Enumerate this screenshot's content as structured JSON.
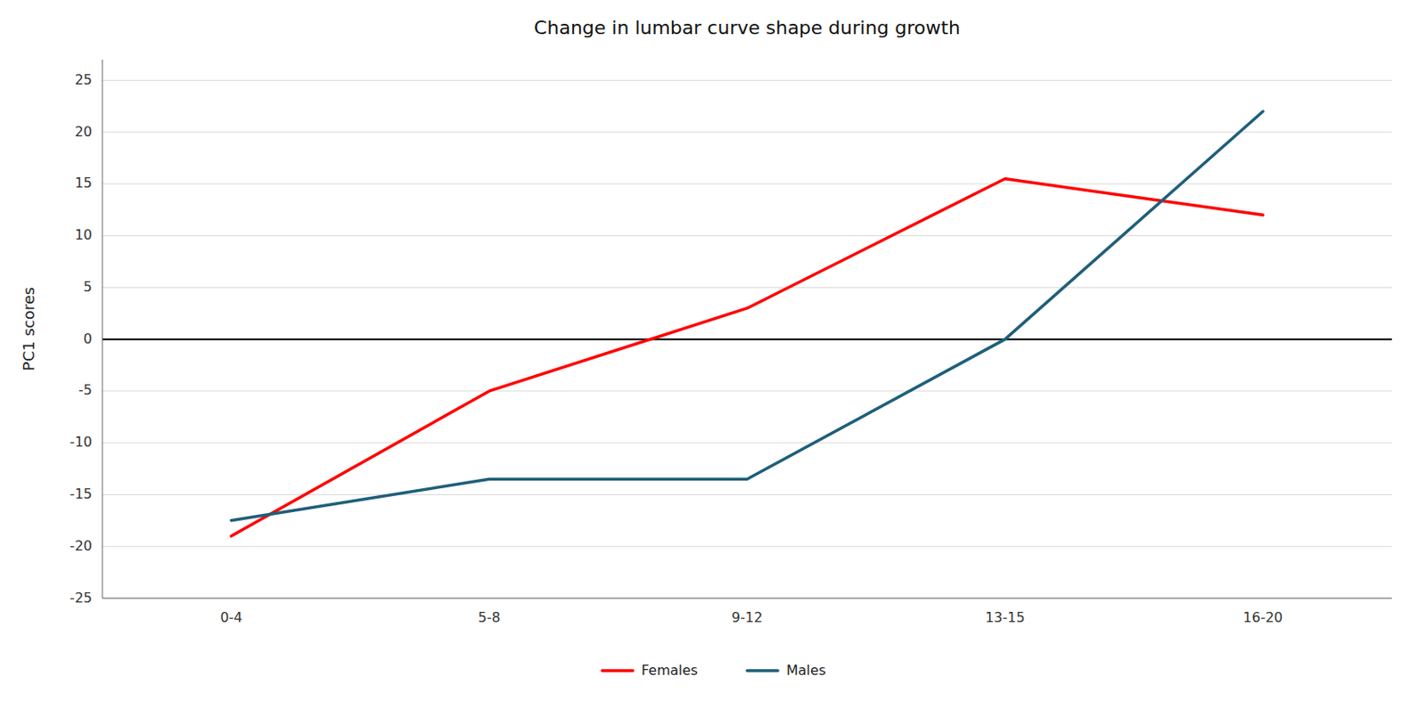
{
  "chart_data": {
    "type": "line",
    "title": "Change in lumbar curve shape during growth",
    "ylabel": "PC1 scores",
    "categories": [
      "0-4",
      "5-8",
      "9-12",
      "13-15",
      "16-20"
    ],
    "series": [
      {
        "name": "Females",
        "color": "#FF0000",
        "values": [
          -19,
          -5,
          3,
          15.5,
          12
        ]
      },
      {
        "name": "Males",
        "color": "#1F5F7A",
        "values": [
          -17.5,
          -13.5,
          -13.5,
          0,
          22
        ]
      }
    ],
    "ylim": [
      -25,
      27
    ],
    "yticks": [
      -25,
      -20,
      -15,
      -10,
      -5,
      0,
      5,
      10,
      15,
      20,
      25
    ],
    "grid": true,
    "legend": "bottom"
  }
}
